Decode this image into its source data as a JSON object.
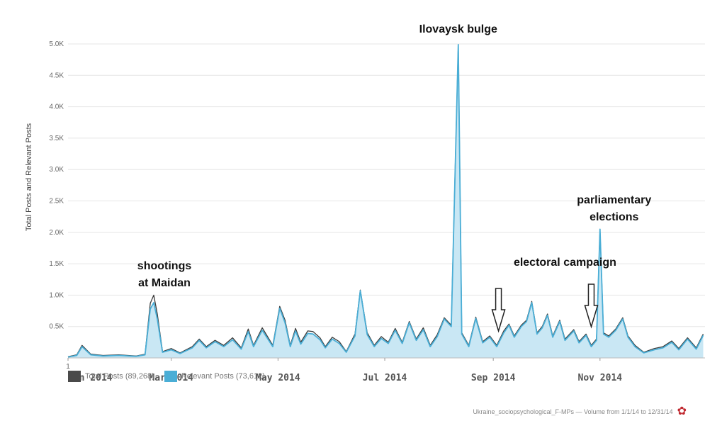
{
  "chart_data": {
    "type": "area",
    "ylabel": "Total Posts and Relevant Posts",
    "y_ticks": [
      "0.5K",
      "1.0K",
      "1.5K",
      "2.0K",
      "2.5K",
      "3.0K",
      "3.5K",
      "4.0K",
      "4.5K",
      "5.0K"
    ],
    "x_ticks": [
      "Jan 2014",
      "Mar 2014",
      "May 2014",
      "Jul 2014",
      "Sep 2014",
      "Nov 2014"
    ],
    "x_first_label": "1",
    "ylim": [
      0,
      5000
    ],
    "grid": true,
    "legend_position": "bottom-left",
    "series": [
      {
        "name": "Total Posts (89,268)",
        "color": "#3a3a3a",
        "points": [
          [
            1,
            20
          ],
          [
            6,
            50
          ],
          [
            9,
            200
          ],
          [
            14,
            60
          ],
          [
            21,
            40
          ],
          [
            30,
            50
          ],
          [
            40,
            30
          ],
          [
            45,
            60
          ],
          [
            48,
            870
          ],
          [
            50,
            1000
          ],
          [
            52,
            700
          ],
          [
            55,
            100
          ],
          [
            60,
            150
          ],
          [
            65,
            80
          ],
          [
            72,
            180
          ],
          [
            76,
            300
          ],
          [
            80,
            180
          ],
          [
            85,
            280
          ],
          [
            90,
            200
          ],
          [
            95,
            320
          ],
          [
            100,
            160
          ],
          [
            104,
            460
          ],
          [
            107,
            200
          ],
          [
            112,
            480
          ],
          [
            118,
            200
          ],
          [
            122,
            820
          ],
          [
            125,
            600
          ],
          [
            128,
            200
          ],
          [
            131,
            470
          ],
          [
            134,
            250
          ],
          [
            138,
            430
          ],
          [
            141,
            420
          ],
          [
            145,
            320
          ],
          [
            148,
            180
          ],
          [
            152,
            330
          ],
          [
            156,
            260
          ],
          [
            160,
            100
          ],
          [
            165,
            380
          ],
          [
            168,
            1080
          ],
          [
            172,
            400
          ],
          [
            176,
            200
          ],
          [
            180,
            340
          ],
          [
            184,
            250
          ],
          [
            188,
            470
          ],
          [
            192,
            250
          ],
          [
            196,
            580
          ],
          [
            200,
            300
          ],
          [
            204,
            480
          ],
          [
            208,
            200
          ],
          [
            212,
            370
          ],
          [
            216,
            640
          ],
          [
            220,
            520
          ],
          [
            224,
            4970
          ],
          [
            226,
            400
          ],
          [
            230,
            200
          ],
          [
            234,
            650
          ],
          [
            238,
            260
          ],
          [
            242,
            350
          ],
          [
            246,
            200
          ],
          [
            250,
            430
          ],
          [
            253,
            540
          ],
          [
            256,
            350
          ],
          [
            260,
            520
          ],
          [
            263,
            600
          ],
          [
            266,
            900
          ],
          [
            269,
            400
          ],
          [
            272,
            500
          ],
          [
            275,
            700
          ],
          [
            278,
            350
          ],
          [
            282,
            600
          ],
          [
            285,
            300
          ],
          [
            290,
            450
          ],
          [
            293,
            260
          ],
          [
            297,
            380
          ],
          [
            300,
            200
          ],
          [
            303,
            300
          ],
          [
            305,
            2030
          ],
          [
            307,
            400
          ],
          [
            310,
            350
          ],
          [
            314,
            460
          ],
          [
            318,
            640
          ],
          [
            321,
            350
          ],
          [
            325,
            200
          ],
          [
            330,
            90
          ],
          [
            336,
            150
          ],
          [
            341,
            180
          ],
          [
            346,
            270
          ],
          [
            350,
            150
          ],
          [
            355,
            320
          ],
          [
            360,
            160
          ],
          [
            364,
            380
          ]
        ]
      },
      {
        "name": "Relevant Posts (73,612)",
        "color": "#4aaed6",
        "points": [
          [
            1,
            15
          ],
          [
            6,
            40
          ],
          [
            9,
            180
          ],
          [
            14,
            50
          ],
          [
            21,
            30
          ],
          [
            30,
            40
          ],
          [
            40,
            25
          ],
          [
            45,
            50
          ],
          [
            48,
            780
          ],
          [
            50,
            880
          ],
          [
            52,
            620
          ],
          [
            55,
            90
          ],
          [
            60,
            130
          ],
          [
            65,
            70
          ],
          [
            72,
            160
          ],
          [
            76,
            280
          ],
          [
            80,
            160
          ],
          [
            85,
            260
          ],
          [
            90,
            180
          ],
          [
            95,
            290
          ],
          [
            100,
            140
          ],
          [
            104,
            420
          ],
          [
            107,
            180
          ],
          [
            112,
            440
          ],
          [
            118,
            180
          ],
          [
            122,
            790
          ],
          [
            125,
            560
          ],
          [
            128,
            180
          ],
          [
            131,
            430
          ],
          [
            134,
            220
          ],
          [
            138,
            390
          ],
          [
            141,
            380
          ],
          [
            145,
            290
          ],
          [
            148,
            160
          ],
          [
            152,
            300
          ],
          [
            156,
            230
          ],
          [
            160,
            90
          ],
          [
            165,
            350
          ],
          [
            168,
            1070
          ],
          [
            172,
            370
          ],
          [
            176,
            180
          ],
          [
            180,
            310
          ],
          [
            184,
            230
          ],
          [
            188,
            440
          ],
          [
            192,
            230
          ],
          [
            196,
            560
          ],
          [
            200,
            280
          ],
          [
            204,
            450
          ],
          [
            208,
            180
          ],
          [
            212,
            340
          ],
          [
            216,
            620
          ],
          [
            220,
            500
          ],
          [
            224,
            4990
          ],
          [
            226,
            380
          ],
          [
            230,
            180
          ],
          [
            234,
            630
          ],
          [
            238,
            240
          ],
          [
            242,
            330
          ],
          [
            246,
            180
          ],
          [
            250,
            400
          ],
          [
            253,
            520
          ],
          [
            256,
            330
          ],
          [
            260,
            500
          ],
          [
            263,
            580
          ],
          [
            266,
            880
          ],
          [
            269,
            380
          ],
          [
            272,
            480
          ],
          [
            275,
            680
          ],
          [
            278,
            330
          ],
          [
            282,
            580
          ],
          [
            285,
            280
          ],
          [
            290,
            430
          ],
          [
            293,
            240
          ],
          [
            297,
            360
          ],
          [
            300,
            180
          ],
          [
            303,
            280
          ],
          [
            305,
            2050
          ],
          [
            307,
            380
          ],
          [
            310,
            330
          ],
          [
            314,
            440
          ],
          [
            318,
            620
          ],
          [
            321,
            330
          ],
          [
            325,
            180
          ],
          [
            330,
            80
          ],
          [
            336,
            130
          ],
          [
            341,
            160
          ],
          [
            346,
            250
          ],
          [
            350,
            130
          ],
          [
            355,
            300
          ],
          [
            360,
            140
          ],
          [
            364,
            360
          ]
        ]
      }
    ],
    "annotations": [
      {
        "lines": [
          "Ilovaysk  bulge"
        ],
        "x": 224
      },
      {
        "lines": [
          "shootings",
          "at  Maidan"
        ],
        "x": 50
      },
      {
        "lines": [
          "electoral campaign"
        ],
        "x": 285
      },
      {
        "lines": [
          "parliamentary",
          "elections"
        ],
        "x": 307
      }
    ],
    "arrows": [
      {
        "name": "electoral-campaign-arrow",
        "x": 247
      },
      {
        "name": "election-arrow",
        "x": 300
      }
    ]
  },
  "legend": {
    "total": "Total Posts (89,268)",
    "relevant": "Relevant Posts (73,612)"
  },
  "footer": {
    "text": "Ukraine_sociopsychological_F-MPs — Volume from 1/1/14 to 12/31/14"
  }
}
